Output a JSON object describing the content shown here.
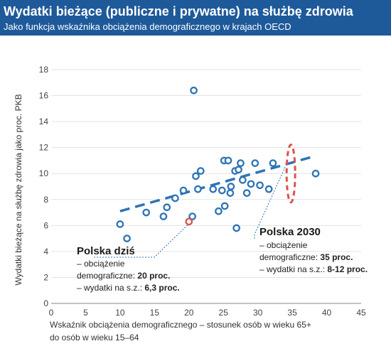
{
  "header": {
    "title": "Wydatki bieżące (publiczne i prywatne) na służbę zdrowia",
    "subtitle": "Jako funkcja wskaźnika obciążenia demograficznego w krajach OECD"
  },
  "colors": {
    "header_bg": "#1e5a9a",
    "point": "#2e74b5",
    "highlight_point": "#d9534f",
    "trend": "#2e74b5",
    "ellipse": "#d9534f"
  },
  "chart_data": {
    "type": "scatter",
    "xlabel": "Wskaźnik obciążenia demograficznego – stosunek osób w wieku 65+",
    "xlabel2": "do osób w wieku 15–64",
    "ylabel": "Wydatki bieżące na służbę zdrowia jako proc. PKB",
    "xlim": [
      0,
      45
    ],
    "ylim": [
      0,
      18
    ],
    "xticks": [
      0,
      5,
      10,
      15,
      20,
      25,
      30,
      35,
      40,
      45
    ],
    "yticks": [
      0,
      2,
      4,
      6,
      8,
      10,
      12,
      14,
      16,
      18
    ],
    "grid": "horizontal",
    "points": [
      {
        "x": 10.0,
        "y": 6.1
      },
      {
        "x": 11.0,
        "y": 5.0
      },
      {
        "x": 13.8,
        "y": 7.0
      },
      {
        "x": 16.3,
        "y": 6.7
      },
      {
        "x": 16.8,
        "y": 7.4
      },
      {
        "x": 18.0,
        "y": 8.1
      },
      {
        "x": 19.2,
        "y": 8.7
      },
      {
        "x": 20.5,
        "y": 6.7
      },
      {
        "x": 20.7,
        "y": 16.4
      },
      {
        "x": 21.0,
        "y": 9.8
      },
      {
        "x": 21.3,
        "y": 8.8
      },
      {
        "x": 21.7,
        "y": 10.2
      },
      {
        "x": 23.5,
        "y": 8.8
      },
      {
        "x": 24.3,
        "y": 7.1
      },
      {
        "x": 24.8,
        "y": 8.7
      },
      {
        "x": 25.1,
        "y": 11.0
      },
      {
        "x": 25.2,
        "y": 7.5
      },
      {
        "x": 25.7,
        "y": 11.0
      },
      {
        "x": 26.0,
        "y": 8.5
      },
      {
        "x": 26.1,
        "y": 9.0
      },
      {
        "x": 26.7,
        "y": 10.2
      },
      {
        "x": 26.9,
        "y": 5.8
      },
      {
        "x": 27.2,
        "y": 10.3
      },
      {
        "x": 27.5,
        "y": 10.8
      },
      {
        "x": 27.8,
        "y": 9.5
      },
      {
        "x": 28.4,
        "y": 8.5
      },
      {
        "x": 29.0,
        "y": 9.2
      },
      {
        "x": 29.6,
        "y": 10.8
      },
      {
        "x": 30.3,
        "y": 9.1
      },
      {
        "x": 31.6,
        "y": 8.8
      },
      {
        "x": 32.2,
        "y": 10.8
      },
      {
        "x": 38.4,
        "y": 10.0
      }
    ],
    "highlight_point": {
      "x": 20.0,
      "y": 6.3
    },
    "trend_line": {
      "x": [
        10,
        38
      ],
      "y": [
        7.1,
        11.3
      ]
    },
    "forecast_range": {
      "x": 34.8,
      "y": [
        8,
        12
      ]
    },
    "annotations": {
      "polska_dzis": {
        "title": "Polska dziś",
        "line1": "– obciążenie",
        "line2": "demograficzne: ",
        "line2_value": "20 proc.",
        "line3": "– wydatki na s.z.: ",
        "line3_value": "6,3 proc."
      },
      "polska_2030": {
        "title": "Polska 2030",
        "line1": "– obciążenie",
        "line2": "demograficzne: ",
        "line2_value": "35 proc.",
        "line3": "– wydatki na s.z.: ",
        "line3_value": "8-12 proc."
      }
    }
  }
}
